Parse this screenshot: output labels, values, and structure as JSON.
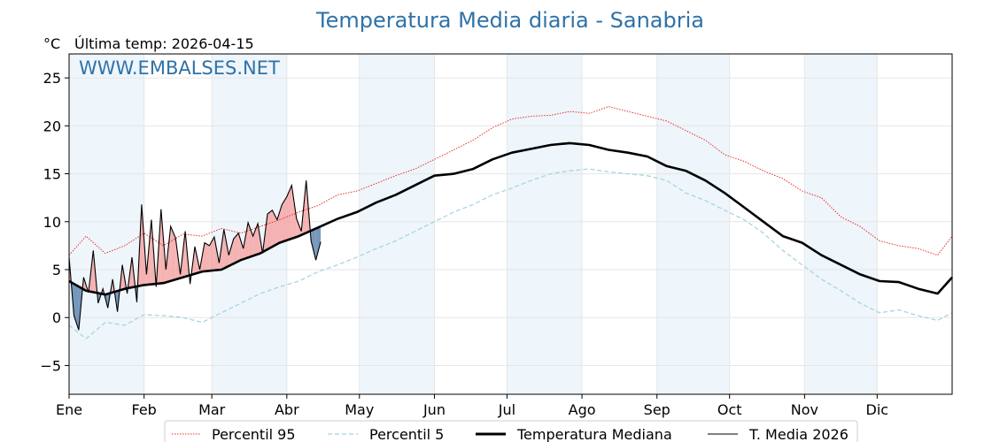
{
  "title": "Temperatura Media diaria - Sanabria",
  "unit_label": "°C",
  "last_temp_label": "Última temp: 2026-04-15",
  "watermark": "WWW.EMBALSES.NET",
  "colors": {
    "title": "#2f72a8",
    "p95": "#e8302a",
    "p5": "#a8d4e2",
    "median": "#000000",
    "current": "#000000",
    "fill_above": "#f4a6a6",
    "fill_below": "#5f86b0",
    "band": "#eef5fb"
  },
  "chart_data": {
    "type": "line",
    "title": "Temperatura Media diaria - Sanabria",
    "ylabel": "°C",
    "xlim": [
      1,
      366
    ],
    "ylim": [
      -8,
      27.5
    ],
    "y_ticks": [
      -5,
      0,
      5,
      10,
      15,
      20,
      25
    ],
    "y_tick_labels": [
      "−5",
      "0",
      "5",
      "10",
      "15",
      "20",
      "25"
    ],
    "months": [
      "Ene",
      "Feb",
      "Mar",
      "Abr",
      "May",
      "Jun",
      "Jul",
      "Ago",
      "Sep",
      "Oct",
      "Nov",
      "Dic"
    ],
    "month_start_days": [
      1,
      32,
      60,
      91,
      121,
      152,
      182,
      213,
      244,
      274,
      305,
      335
    ],
    "grid": true,
    "legend_position": "bottom",
    "series": [
      {
        "name": "Percentil 95",
        "style": "dotted-red",
        "x": [
          1,
          8,
          16,
          24,
          32,
          40,
          48,
          56,
          64,
          72,
          80,
          88,
          96,
          104,
          112,
          120,
          128,
          136,
          144,
          152,
          160,
          168,
          176,
          184,
          192,
          200,
          208,
          216,
          224,
          232,
          240,
          248,
          256,
          264,
          272,
          280,
          288,
          296,
          304,
          312,
          320,
          328,
          336,
          344,
          352,
          360,
          366
        ],
        "y": [
          6.5,
          8.5,
          6.7,
          7.5,
          8.8,
          7.5,
          8.7,
          8.5,
          9.3,
          8.8,
          9.5,
          10.2,
          11.0,
          11.7,
          12.8,
          13.2,
          14.0,
          14.8,
          15.5,
          16.5,
          17.5,
          18.5,
          19.8,
          20.7,
          21.0,
          21.1,
          21.5,
          21.3,
          22.0,
          21.5,
          21.0,
          20.5,
          19.5,
          18.5,
          17.0,
          16.3,
          15.3,
          14.5,
          13.2,
          12.5,
          10.5,
          9.5,
          8.0,
          7.5,
          7.2,
          6.5,
          8.5
        ]
      },
      {
        "name": "Percentil 5",
        "style": "dashed-lightblue",
        "x": [
          1,
          8,
          16,
          24,
          32,
          40,
          48,
          56,
          64,
          72,
          80,
          88,
          96,
          104,
          112,
          120,
          128,
          136,
          144,
          152,
          160,
          168,
          176,
          184,
          192,
          200,
          208,
          216,
          224,
          232,
          240,
          248,
          256,
          264,
          272,
          280,
          288,
          296,
          304,
          312,
          320,
          328,
          336,
          344,
          352,
          360,
          366
        ],
        "y": [
          -0.8,
          -2.2,
          -0.5,
          -0.8,
          0.3,
          0.2,
          0.0,
          -0.5,
          0.5,
          1.5,
          2.5,
          3.2,
          3.8,
          4.8,
          5.5,
          6.3,
          7.2,
          8.0,
          9.0,
          10.0,
          11.0,
          11.8,
          12.8,
          13.5,
          14.3,
          15.0,
          15.3,
          15.5,
          15.2,
          15.0,
          14.8,
          14.3,
          13.0,
          12.2,
          11.2,
          10.2,
          8.8,
          7.0,
          5.5,
          4.0,
          2.8,
          1.5,
          0.5,
          0.8,
          0.2,
          -0.3,
          0.5
        ]
      },
      {
        "name": "Temperatura Mediana",
        "style": "solid-thick-black",
        "x": [
          1,
          8,
          16,
          24,
          32,
          40,
          48,
          56,
          64,
          72,
          80,
          88,
          96,
          104,
          112,
          120,
          128,
          136,
          144,
          152,
          160,
          168,
          176,
          184,
          192,
          200,
          208,
          216,
          224,
          232,
          240,
          248,
          256,
          264,
          272,
          280,
          288,
          296,
          304,
          312,
          320,
          328,
          336,
          344,
          352,
          360,
          366
        ],
        "y": [
          3.8,
          2.8,
          2.4,
          3.0,
          3.4,
          3.6,
          4.2,
          4.8,
          5.0,
          6.0,
          6.7,
          7.8,
          8.5,
          9.4,
          10.3,
          11.0,
          12.0,
          12.8,
          13.8,
          14.8,
          15.0,
          15.5,
          16.5,
          17.2,
          17.6,
          18.0,
          18.2,
          18.0,
          17.5,
          17.2,
          16.8,
          15.8,
          15.3,
          14.3,
          13.0,
          11.5,
          10.0,
          8.5,
          7.8,
          6.5,
          5.5,
          4.5,
          3.8,
          3.7,
          3.0,
          2.5,
          4.2
        ]
      },
      {
        "name": "T. Media 2026",
        "style": "solid-thin-black",
        "x": [
          1,
          3,
          5,
          7,
          9,
          11,
          13,
          15,
          17,
          19,
          21,
          23,
          25,
          27,
          29,
          31,
          33,
          35,
          37,
          39,
          41,
          43,
          45,
          47,
          49,
          51,
          53,
          55,
          57,
          59,
          61,
          63,
          65,
          67,
          69,
          71,
          73,
          75,
          77,
          79,
          81,
          83,
          85,
          87,
          89,
          91,
          93,
          95,
          97,
          99,
          101,
          103,
          105
        ],
        "y": [
          6.3,
          0.2,
          -1.3,
          4.2,
          2.6,
          7.0,
          1.5,
          3.0,
          1.0,
          4.0,
          0.6,
          5.5,
          2.5,
          6.3,
          1.6,
          11.8,
          4.5,
          10.2,
          3.2,
          11.3,
          5.0,
          9.5,
          8.3,
          4.5,
          9.0,
          3.5,
          7.4,
          5.0,
          7.8,
          7.5,
          8.4,
          5.7,
          9.2,
          6.5,
          8.2,
          8.8,
          7.2,
          9.9,
          8.5,
          9.8,
          6.7,
          10.8,
          11.2,
          10.2,
          11.8,
          12.6,
          13.8,
          10.3,
          9.0,
          14.3,
          8.0,
          6.0,
          7.9
        ]
      }
    ]
  }
}
